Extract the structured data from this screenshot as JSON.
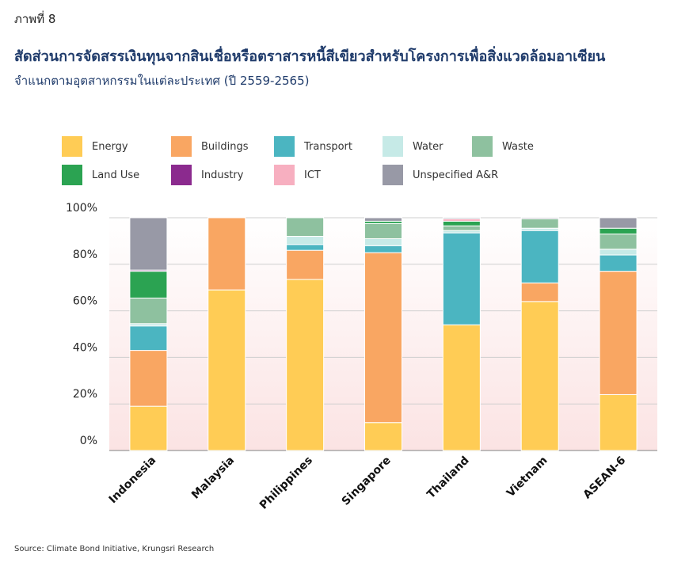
{
  "figure_label": "ภาพที่ 8",
  "title": "สัดส่วนการจัดสรรเงินทุนจากสินเชื่อหรือตราสารหนี้สีเขียวสำหรับโครงการเพื่อสิ่งแวดล้อมอาเซียน",
  "subtitle": "จำแนกตามอุตสาหกรรมในแต่ละประเทศ (ปี 2559-2565)",
  "source": "Source: Climate Bond Initiative, Krungsri Research",
  "colors": {
    "Energy": "#FFCC55",
    "Buildings": "#F9A662",
    "Transport": "#4BB5C1",
    "Water": "#C6EAE7",
    "Waste": "#8EC19F",
    "Land Use": "#2BA352",
    "Industry": "#8B2A8E",
    "ICT": "#F7AFC0",
    "Unspecified A&R": "#9899A6"
  },
  "chart_data": {
    "type": "bar",
    "stacked": true,
    "categories": [
      "Indonesia",
      "Malaysia",
      "Philippines",
      "Singapore",
      "Thailand",
      "Vietnam",
      "ASEAN-6"
    ],
    "series": [
      {
        "name": "Energy",
        "values": [
          19,
          69,
          73.5,
          12,
          54,
          64,
          24
        ]
      },
      {
        "name": "Buildings",
        "values": [
          24,
          31,
          12.5,
          73,
          0,
          8,
          53
        ]
      },
      {
        "name": "Transport",
        "values": [
          10.5,
          0,
          2.5,
          3,
          39.5,
          22.5,
          7
        ]
      },
      {
        "name": "Water",
        "values": [
          1,
          0,
          3.5,
          3,
          1,
          1,
          2.5
        ]
      },
      {
        "name": "Waste",
        "values": [
          11,
          0,
          8,
          6.5,
          2,
          4,
          6.5
        ]
      },
      {
        "name": "Land Use",
        "values": [
          11.5,
          0,
          0,
          1,
          2,
          0,
          2.5
        ]
      },
      {
        "name": "Industry",
        "values": [
          0.5,
          0,
          0,
          0,
          0,
          0,
          0
        ]
      },
      {
        "name": "ICT",
        "values": [
          0,
          0,
          0,
          0,
          1,
          0,
          0
        ]
      },
      {
        "name": "Unspecified A&R",
        "values": [
          22.5,
          0,
          0,
          1.5,
          0.5,
          0.5,
          4.5
        ]
      }
    ],
    "ylim": [
      0,
      100
    ],
    "yticks": [
      "0%",
      "20%",
      "40%",
      "60%",
      "80%",
      "100%"
    ],
    "grid": true,
    "legend": "top",
    "xlabel": "",
    "ylabel": ""
  }
}
